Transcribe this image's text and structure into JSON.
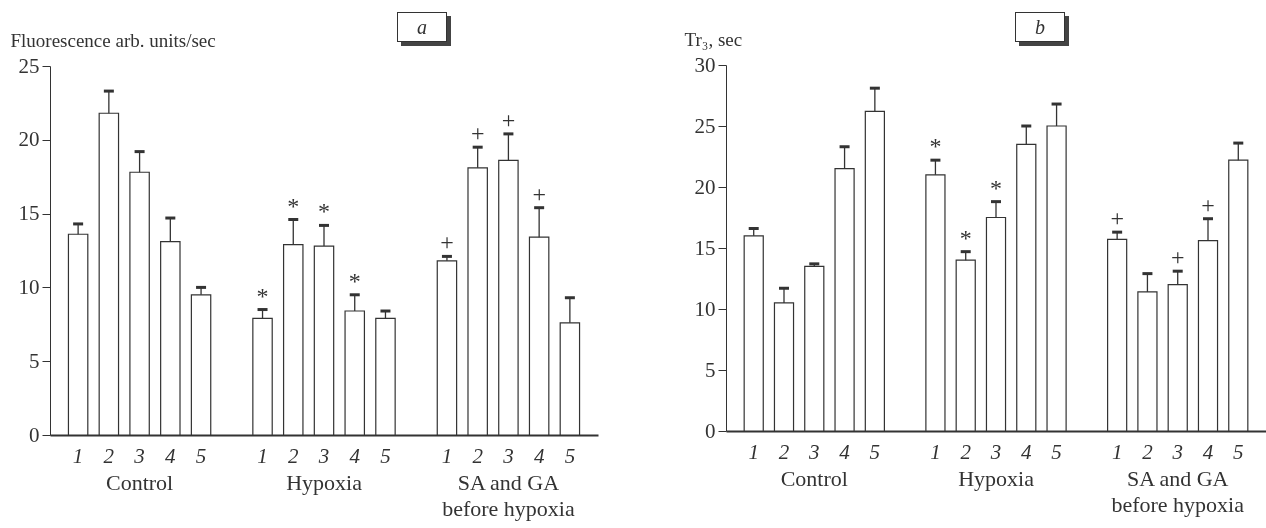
{
  "chart_data": [
    {
      "type": "bar",
      "title": "a",
      "ylabel": "Fluorescence arb. units/sec",
      "color": "#ffffff",
      "categories": [
        "1",
        "2",
        "3",
        "4",
        "5",
        null,
        "1",
        "2",
        "3",
        "4",
        "5",
        null,
        "1",
        "2",
        "3",
        "4",
        "5"
      ],
      "values": [
        13.6,
        21.8,
        17.8,
        13.1,
        9.5,
        null,
        7.9,
        12.9,
        12.8,
        8.4,
        7.9,
        null,
        11.8,
        18.1,
        18.6,
        13.4,
        7.6
      ],
      "errors": [
        [
          13.6,
          14.3
        ],
        [
          21.8,
          23.3
        ],
        [
          17.8,
          19.2
        ],
        [
          13.1,
          14.7
        ],
        [
          9.5,
          10.0
        ],
        null,
        [
          7.9,
          8.5
        ],
        [
          12.9,
          14.6
        ],
        [
          12.8,
          14.2
        ],
        [
          8.4,
          9.5
        ],
        [
          7.9,
          8.4
        ],
        null,
        [
          11.8,
          12.1
        ],
        [
          18.1,
          19.5
        ],
        [
          18.6,
          20.4
        ],
        [
          13.4,
          15.4
        ],
        [
          7.6,
          9.3
        ]
      ],
      "value_labels": [
        null,
        null,
        null,
        null,
        null,
        null,
        "*",
        "*",
        "*",
        "*",
        null,
        null,
        "+",
        "+",
        "+",
        "+",
        null
      ],
      "ylim": [
        0,
        25
      ],
      "yticks": [
        0,
        5,
        10,
        15,
        20,
        25
      ],
      "annotations": [
        "Control",
        "Hypoxia",
        "SA and GA before hypoxia"
      ]
    },
    {
      "type": "bar",
      "title": "b",
      "ylabel": "Tr₃, sec",
      "color": "#ffffff",
      "categories": [
        "1",
        "2",
        "3",
        "4",
        "5",
        null,
        "1",
        "2",
        "3",
        "4",
        "5",
        null,
        "1",
        "2",
        "3",
        "4",
        "5"
      ],
      "values": [
        16.0,
        10.5,
        13.5,
        21.5,
        26.2,
        null,
        21.0,
        14.0,
        17.5,
        23.5,
        25.0,
        null,
        15.7,
        11.4,
        12.0,
        15.6,
        22.2
      ],
      "errors": [
        [
          16.0,
          16.6
        ],
        [
          10.5,
          11.7
        ],
        [
          13.5,
          13.7
        ],
        [
          21.5,
          23.3
        ],
        [
          26.2,
          28.1
        ],
        null,
        [
          21.0,
          22.2
        ],
        [
          14.0,
          14.7
        ],
        [
          17.5,
          18.8
        ],
        [
          23.5,
          25.0
        ],
        [
          25.0,
          26.8
        ],
        null,
        [
          15.7,
          16.3
        ],
        [
          11.4,
          12.9
        ],
        [
          12.0,
          13.1
        ],
        [
          15.6,
          17.4
        ],
        [
          22.2,
          23.6
        ]
      ],
      "value_labels": [
        null,
        null,
        null,
        null,
        null,
        null,
        "*",
        "*",
        "*",
        null,
        null,
        null,
        "+",
        null,
        "+",
        "+",
        null
      ],
      "ylim": [
        0,
        30
      ],
      "yticks": [
        0,
        5,
        10,
        15,
        20,
        25,
        30
      ],
      "annotations": [
        "Control",
        "Hypoxia",
        "SA and GA before hypoxia"
      ]
    }
  ]
}
